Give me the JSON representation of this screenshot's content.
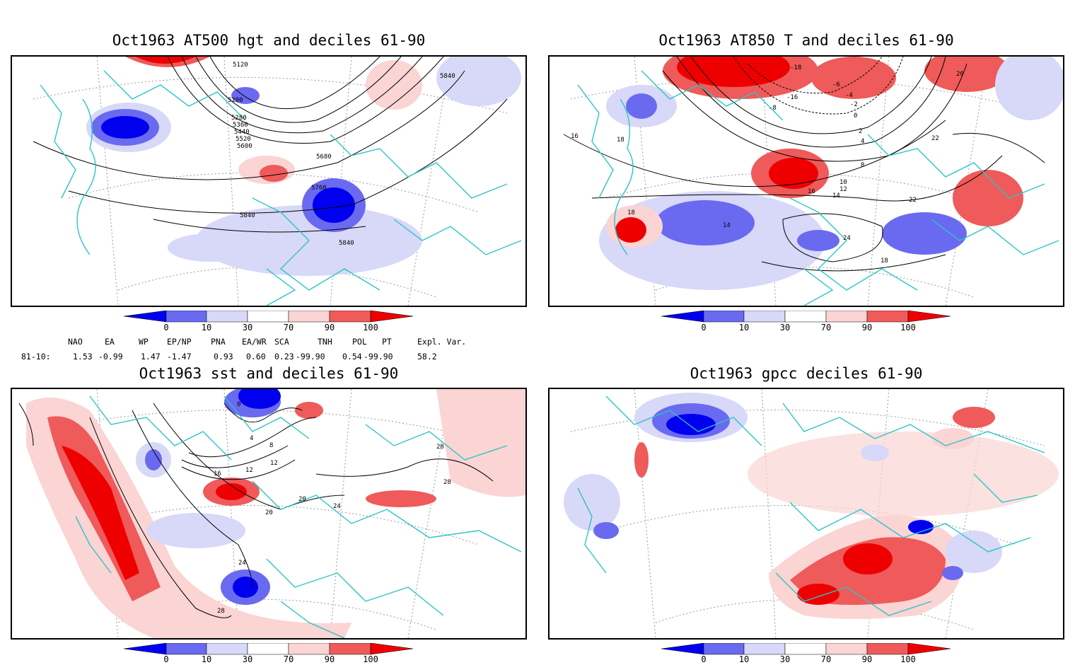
{
  "panels": [
    {
      "title": "Oct1963 AT500 hgt and deciles 61-90",
      "contour_labels": [
        "5120",
        "5200",
        "5280",
        "5360",
        "5440",
        "5520",
        "5600",
        "5680",
        "5760",
        "5840",
        "5840",
        "5840"
      ]
    },
    {
      "title": "Oct1963 AT850 T and deciles 61-90",
      "contour_labels": [
        "-18",
        "-16",
        "-8",
        "-6",
        "-4",
        "-2",
        "0",
        "2",
        "4",
        "8",
        "10",
        "12",
        "14",
        "14",
        "16",
        "16",
        "18",
        "18",
        "18",
        "20",
        "22",
        "22",
        "24"
      ]
    },
    {
      "title": "Oct1963 sst and deciles 61-90",
      "contour_labels": [
        "0",
        "4",
        "8",
        "12",
        "12",
        "16",
        "20",
        "20",
        "24",
        "24",
        "28",
        "28",
        "28"
      ]
    },
    {
      "title": "Oct1963 gpcc deciles 61-90",
      "contour_labels": []
    }
  ],
  "colorbar": {
    "labels": [
      "0",
      "10",
      "30",
      "70",
      "90",
      "100"
    ],
    "colors": [
      "#0000ee",
      "#6a6af0",
      "#d8d8f8",
      "#ffffff",
      "#fbd4d4",
      "#ef5a5a",
      "#ee0000"
    ]
  },
  "indices": {
    "header": [
      "NAO",
      "EA",
      "WP",
      "EP/NP",
      "PNA",
      "EA/WR",
      "SCA",
      "TNH",
      "POL",
      "PT",
      "Expl. Var."
    ],
    "row_label": "81-10:",
    "values": [
      "1.53",
      "-0.99",
      "1.47",
      "-1.47",
      "0.93",
      "0.60",
      "0.23",
      "-99.90",
      "0.54",
      "-99.90",
      "58.2"
    ]
  }
}
